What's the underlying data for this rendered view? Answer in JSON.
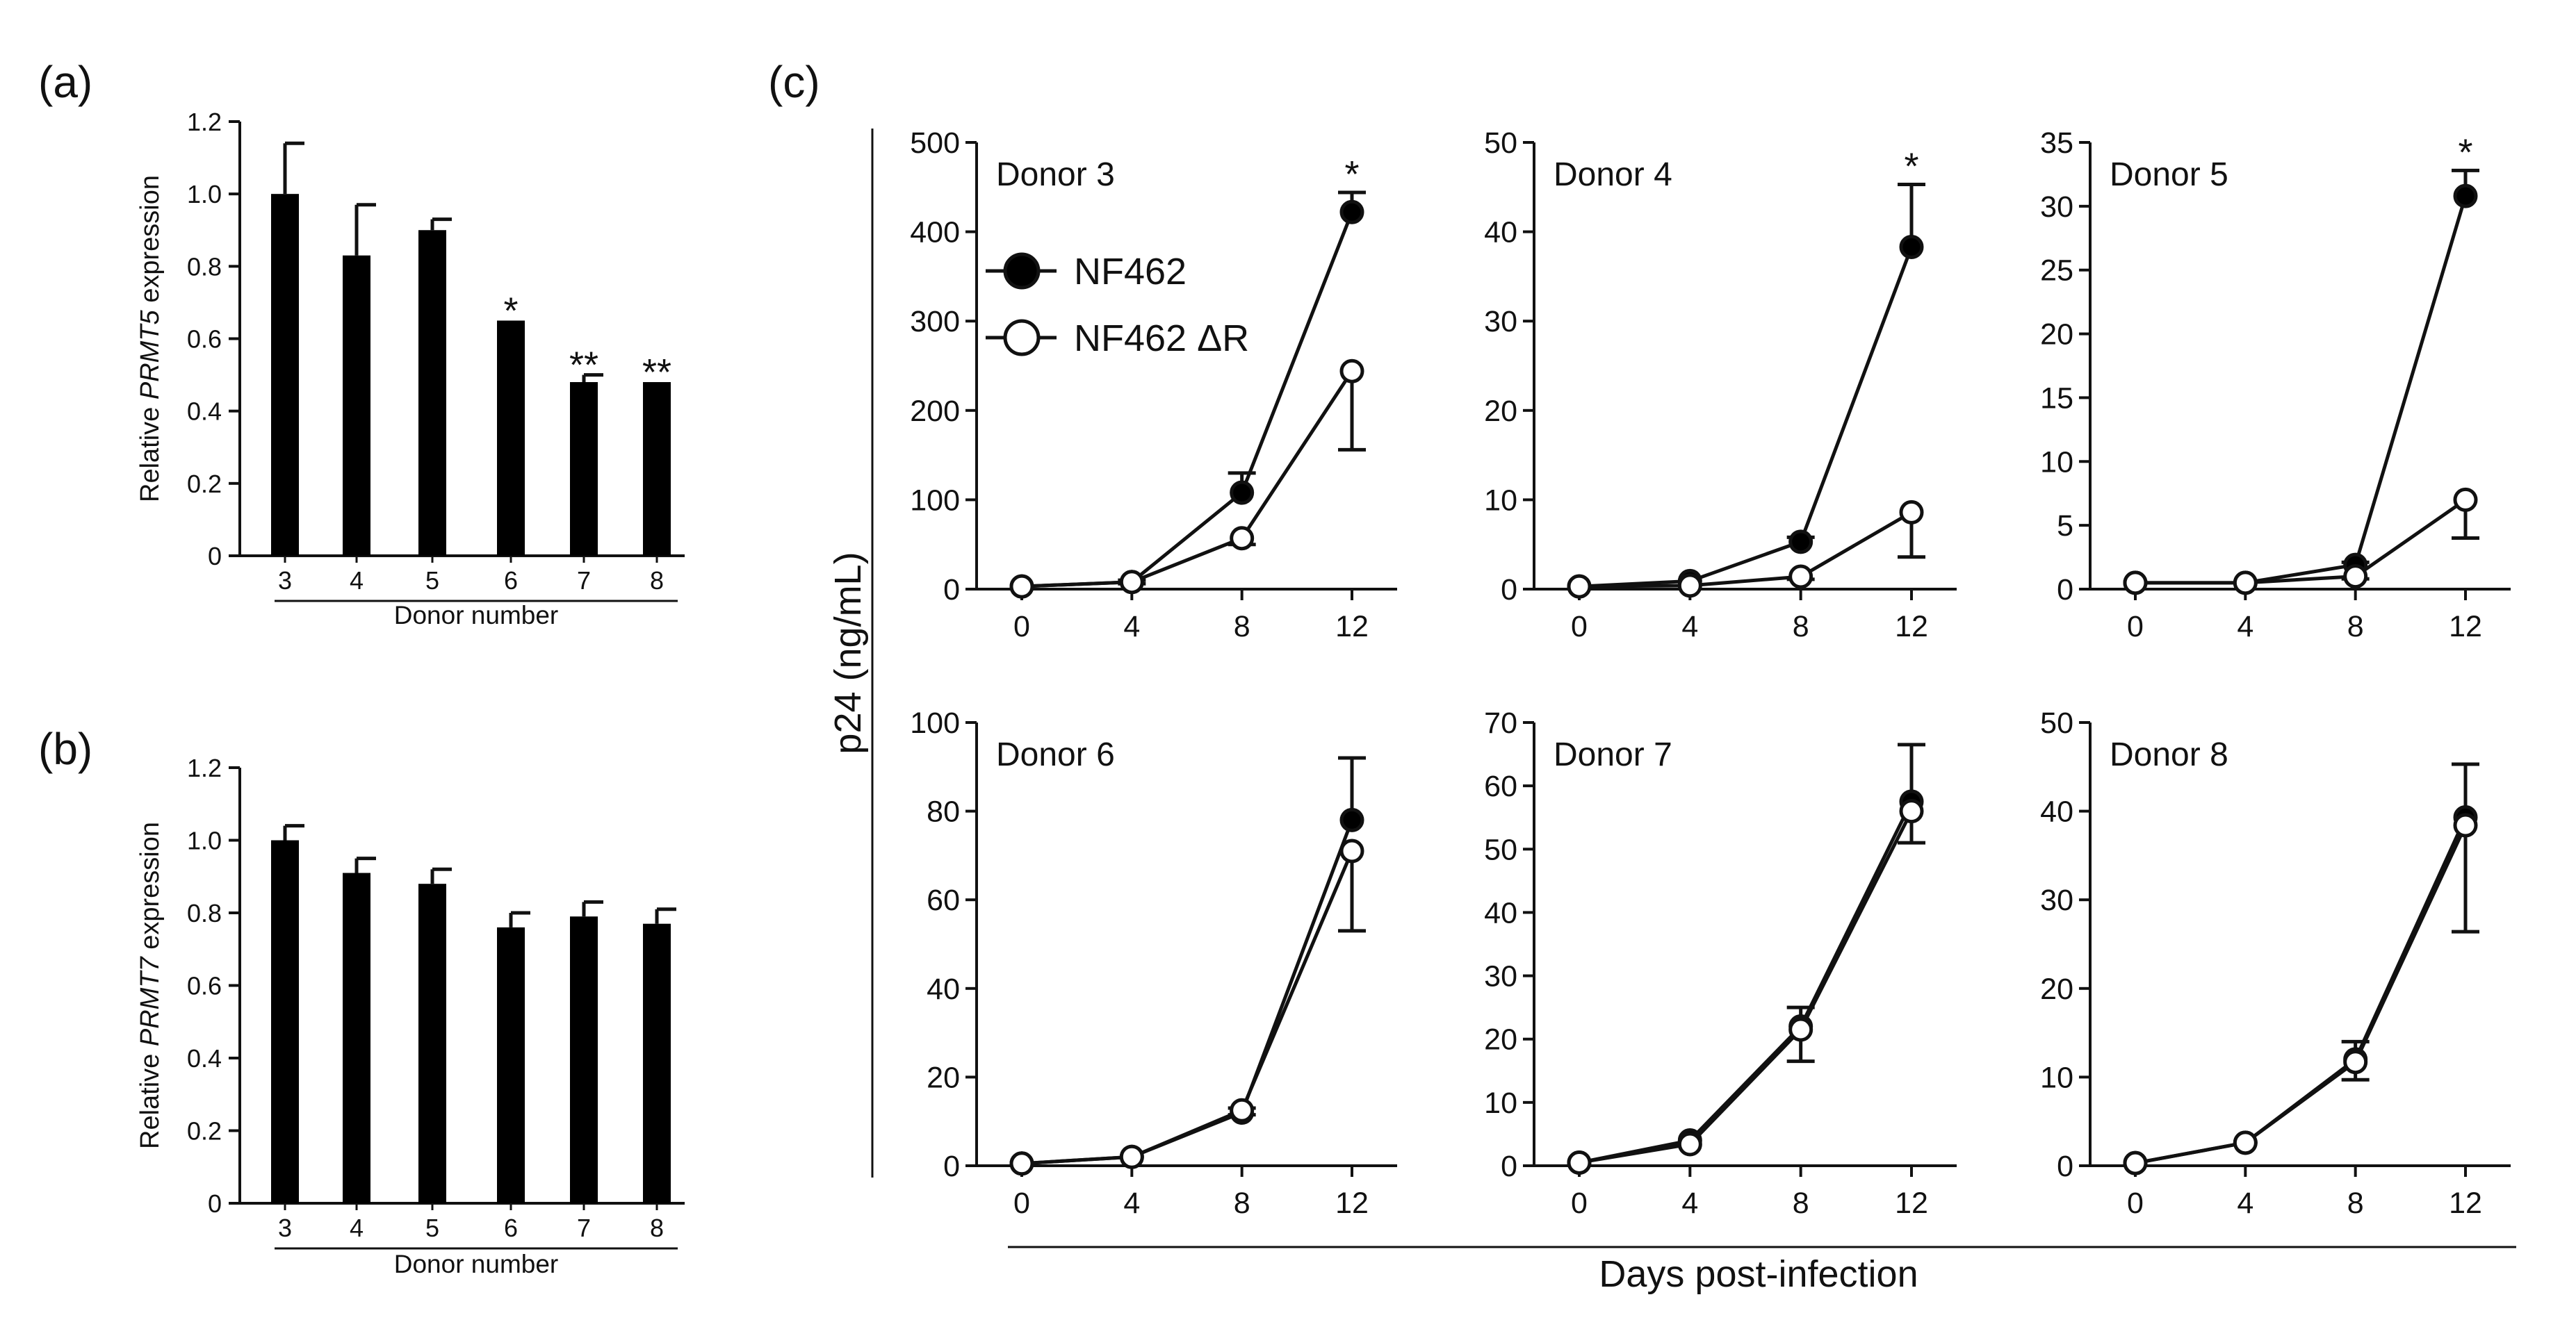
{
  "panels": {
    "a": "(a)",
    "b": "(b)",
    "c": "(c)"
  },
  "colors": {
    "ink": "#111111",
    "bar_fill": "#000000",
    "open_marker_fill": "#ffffff"
  },
  "chart_data": [
    {
      "id": "a",
      "type": "bar",
      "ylabel_prefix": "Relative ",
      "ylabel_gene": "PRMT5",
      "ylabel_suffix": " expression",
      "xlabel": "Donor number",
      "categories": [
        "3",
        "4",
        "5",
        "6",
        "7",
        "8"
      ],
      "values": [
        1.0,
        0.83,
        0.9,
        0.65,
        0.48,
        0.48
      ],
      "errors": [
        0.14,
        0.14,
        0.03,
        0.0,
        0.02,
        0.0
      ],
      "significance": [
        "",
        "",
        "",
        "*",
        "**",
        "**"
      ],
      "ylim": [
        0,
        1.2
      ],
      "yticks": [
        "0",
        "0.2",
        "0.4",
        "0.6",
        "0.8",
        "1.0",
        "1.2"
      ]
    },
    {
      "id": "b",
      "type": "bar",
      "ylabel_prefix": "Relative ",
      "ylabel_gene": "PRMT7",
      "ylabel_suffix": " expression",
      "xlabel": "Donor number",
      "categories": [
        "3",
        "4",
        "5",
        "6",
        "7",
        "8"
      ],
      "values": [
        1.0,
        0.91,
        0.88,
        0.76,
        0.79,
        0.77
      ],
      "errors": [
        0.04,
        0.04,
        0.04,
        0.04,
        0.04,
        0.04
      ],
      "significance": [
        "",
        "",
        "",
        "",
        "",
        ""
      ],
      "ylim": [
        0,
        1.2
      ],
      "yticks": [
        "0",
        "0.2",
        "0.4",
        "0.6",
        "0.8",
        "1.0",
        "1.2"
      ]
    },
    {
      "id": "c",
      "type": "line",
      "ylabel": "p24 (ng/mL)",
      "xlabel": "Days post-infection",
      "x": [
        0,
        4,
        8,
        12
      ],
      "xticks": [
        "0",
        "4",
        "8",
        "12"
      ],
      "legend": {
        "placement": "inside-top-left of first subplot",
        "entries": [
          "NF462",
          "NF462 ΔR"
        ]
      },
      "subplots": [
        {
          "title": "Donor 3",
          "ylim": [
            0,
            500
          ],
          "yticks": [
            "0",
            "100",
            "200",
            "300",
            "400",
            "500"
          ],
          "series": [
            {
              "name": "NF462",
              "values": [
                3,
                8,
                108,
                422
              ],
              "errors": [
                0,
                2,
                22,
                22
              ]
            },
            {
              "name": "NF462 ΔR",
              "values": [
                3,
                8,
                57,
                244
              ],
              "errors": [
                0,
                2,
                7,
                88
              ]
            }
          ],
          "significance": [
            "",
            "",
            "",
            "*"
          ]
        },
        {
          "title": "Donor 4",
          "ylim": [
            0,
            50
          ],
          "yticks": [
            "0",
            "10",
            "20",
            "30",
            "40",
            "50"
          ],
          "series": [
            {
              "name": "NF462",
              "values": [
                0.3,
                0.9,
                5.3,
                38.3
              ],
              "errors": [
                0,
                0,
                0.5,
                7
              ]
            },
            {
              "name": "NF462 ΔR",
              "values": [
                0.3,
                0.4,
                1.4,
                8.6
              ],
              "errors": [
                0,
                0,
                0.3,
                5
              ]
            }
          ],
          "significance": [
            "",
            "",
            "",
            "*"
          ]
        },
        {
          "title": "Donor 5",
          "ylim": [
            0,
            35
          ],
          "yticks": [
            "0",
            "5",
            "10",
            "15",
            "20",
            "25",
            "30",
            "35"
          ],
          "series": [
            {
              "name": "NF462",
              "values": [
                0.5,
                0.5,
                1.9,
                30.8
              ],
              "errors": [
                0,
                0,
                0.2,
                2
              ]
            },
            {
              "name": "NF462 ΔR",
              "values": [
                0.5,
                0.5,
                1.0,
                7.0
              ],
              "errors": [
                0,
                0,
                0.2,
                3
              ]
            }
          ],
          "significance": [
            "",
            "",
            "",
            "*"
          ]
        },
        {
          "title": "Donor 6",
          "ylim": [
            0,
            100
          ],
          "yticks": [
            "0",
            "20",
            "40",
            "60",
            "80",
            "100"
          ],
          "series": [
            {
              "name": "NF462",
              "values": [
                0.5,
                2,
                12,
                78
              ],
              "errors": [
                0,
                0,
                1,
                14
              ]
            },
            {
              "name": "NF462 ΔR",
              "values": [
                0.5,
                2,
                12.5,
                71
              ],
              "errors": [
                0,
                0,
                1,
                18
              ]
            }
          ],
          "significance": [
            "",
            "",
            "",
            ""
          ]
        },
        {
          "title": "Donor 7",
          "ylim": [
            0,
            70
          ],
          "yticks": [
            "0",
            "10",
            "20",
            "30",
            "40",
            "50",
            "60",
            "70"
          ],
          "series": [
            {
              "name": "NF462",
              "values": [
                0.5,
                4,
                22,
                57.5
              ],
              "errors": [
                0,
                0,
                3,
                9
              ]
            },
            {
              "name": "NF462 ΔR",
              "values": [
                0.5,
                3.4,
                21.5,
                56
              ],
              "errors": [
                0,
                0,
                5,
                5
              ]
            }
          ],
          "significance": [
            "",
            "",
            "",
            ""
          ]
        },
        {
          "title": "Donor 8",
          "ylim": [
            0,
            50
          ],
          "yticks": [
            "0",
            "10",
            "20",
            "30",
            "40",
            "50"
          ],
          "series": [
            {
              "name": "NF462",
              "values": [
                0.3,
                2.6,
                12,
                39.3
              ],
              "errors": [
                0,
                0,
                2,
                6
              ]
            },
            {
              "name": "NF462 ΔR",
              "values": [
                0.3,
                2.6,
                11.7,
                38.4
              ],
              "errors": [
                0,
                0,
                2,
                12
              ]
            }
          ],
          "significance": [
            "",
            "",
            "",
            ""
          ]
        }
      ]
    }
  ]
}
